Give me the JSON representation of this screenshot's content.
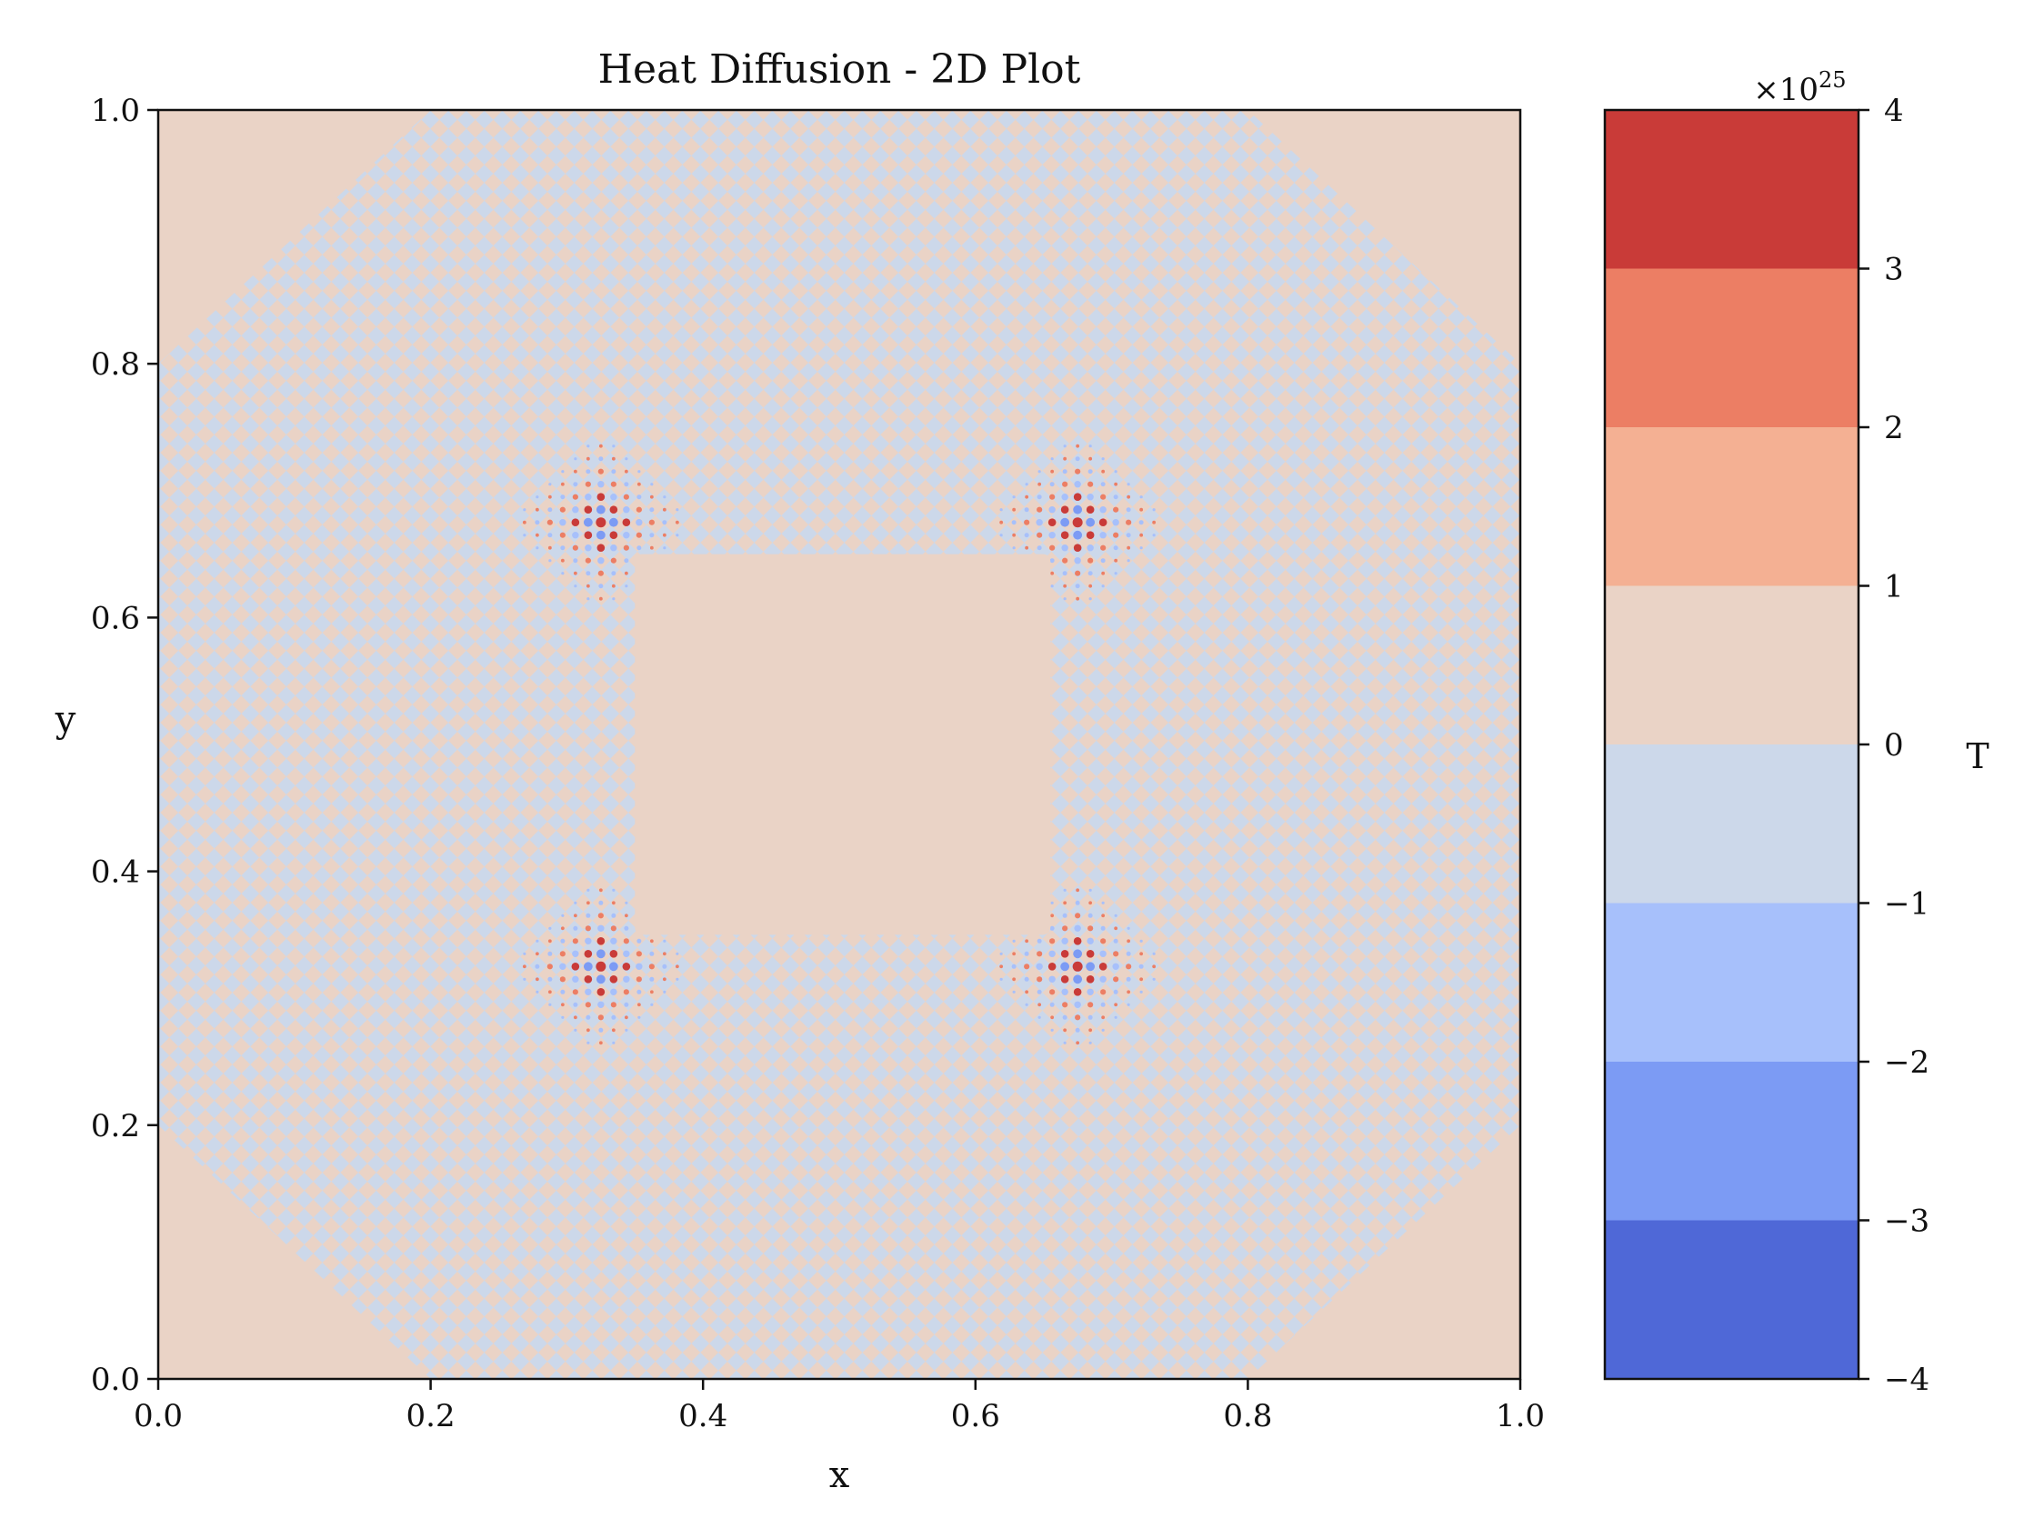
{
  "chart_data": {
    "type": "heatmap",
    "title": "Heat Diffusion - 2D Plot",
    "xlabel": "x",
    "ylabel": "y",
    "xlim": [
      0.0,
      1.0
    ],
    "ylim": [
      0.0,
      1.0
    ],
    "xticks": [
      "0.0",
      "0.2",
      "0.4",
      "0.6",
      "0.8",
      "1.0"
    ],
    "yticks": [
      "0.0",
      "0.2",
      "0.4",
      "0.6",
      "0.8",
      "1.0"
    ],
    "grid": false,
    "field": {
      "background_level_range": [
        0,
        1
      ],
      "uniform_regions": [
        {
          "name": "center-plateau",
          "x": [
            0.35,
            0.655
          ],
          "y": [
            0.35,
            0.65
          ]
        },
        {
          "name": "corner-bottom-left",
          "x": [
            0.0,
            0.2
          ],
          "y": [
            0.0,
            0.2
          ]
        },
        {
          "name": "corner-bottom-right",
          "x": [
            0.8,
            1.0
          ],
          "y": [
            0.0,
            0.2
          ]
        },
        {
          "name": "corner-top-left",
          "x": [
            0.0,
            0.2
          ],
          "y": [
            0.8,
            1.0
          ]
        },
        {
          "name": "corner-top-right",
          "x": [
            0.8,
            1.0
          ],
          "y": [
            0.8,
            1.0
          ]
        }
      ],
      "oscillation_pattern": "diagonal checkerboard, alternating levels 0..1 and -1..0",
      "hotspots": [
        {
          "x": 0.325,
          "y": 0.675
        },
        {
          "x": 0.675,
          "y": 0.675
        },
        {
          "x": 0.325,
          "y": 0.325
        },
        {
          "x": 0.675,
          "y": 0.325
        }
      ]
    },
    "colorbar": {
      "label": "T",
      "multiplier": "×10",
      "exponent": "25",
      "ticks": [
        "4",
        "3",
        "2",
        "1",
        "0",
        "−1",
        "−2",
        "−3",
        "−4"
      ],
      "levels": [
        {
          "range": [
            3,
            4
          ],
          "color": "#c93b38"
        },
        {
          "range": [
            2,
            3
          ],
          "color": "#ec7e64"
        },
        {
          "range": [
            1,
            2
          ],
          "color": "#f4b093"
        },
        {
          "range": [
            0,
            1
          ],
          "color": "#ead3c6"
        },
        {
          "range": [
            -1,
            0
          ],
          "color": "#ccd8ea"
        },
        {
          "range": [
            -2,
            -1
          ],
          "color": "#a7c0fb"
        },
        {
          "range": [
            -3,
            -2
          ],
          "color": "#7c9bf4"
        },
        {
          "range": [
            -4,
            -3
          ],
          "color": "#4f68d7"
        }
      ]
    }
  }
}
